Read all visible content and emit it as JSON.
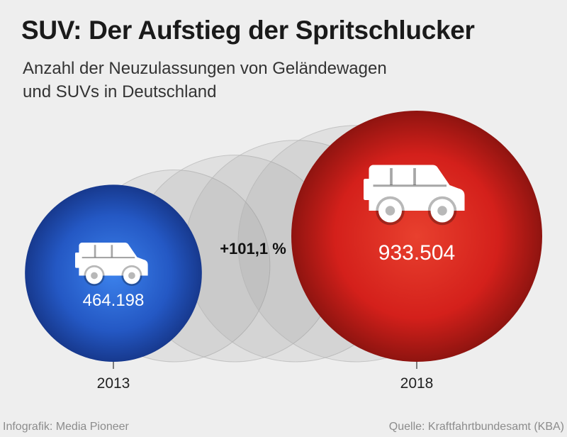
{
  "header": {
    "title": "SUV: Der Aufstieg der Spritschlucker",
    "subtitle_line1": "Anzahl der Neuzulassungen von Geländewagen",
    "subtitle_line2": "und SUVs in Deutschland"
  },
  "chart_data": {
    "type": "bubble",
    "title": "SUV: Der Aufstieg der Spritschlucker",
    "subtitle": "Anzahl der Neuzulassungen von Geländewagen und SUVs in Deutschland",
    "categories": [
      "2013",
      "2018"
    ],
    "values": [
      464198,
      933504
    ],
    "value_labels": [
      "464.198",
      "933.504"
    ],
    "change_label": "+101,1 %",
    "colors": {
      "start": "#2458c4",
      "end": "#d4201b",
      "ghost": "#909090"
    },
    "ghost_circles": 4,
    "icon": "suv-icon"
  },
  "footer": {
    "credit": "Infografik: Media Pioneer",
    "source": "Quelle: Kraftfahrtbundesamt (KBA)"
  }
}
